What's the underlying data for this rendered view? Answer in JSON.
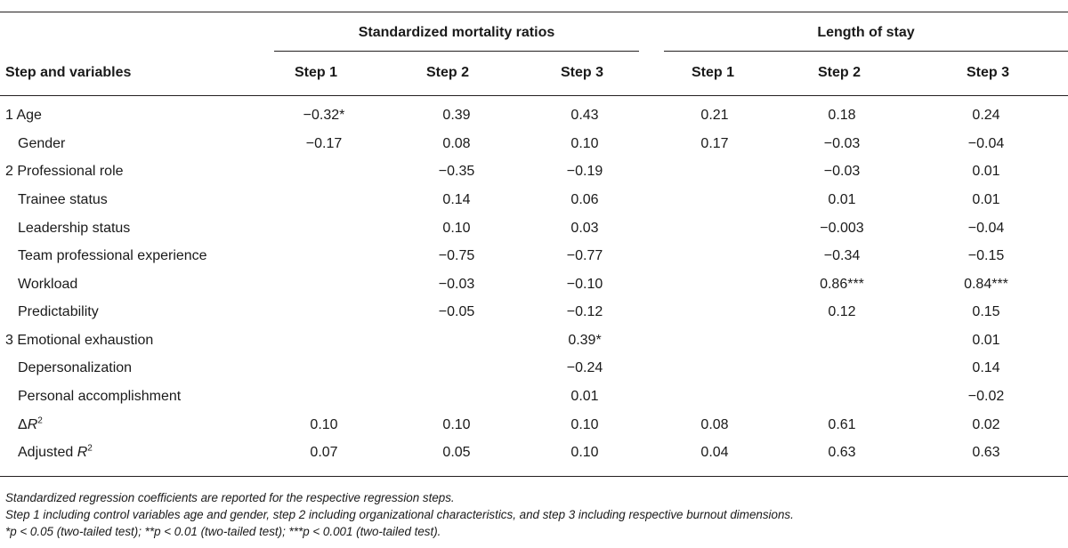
{
  "header": {
    "stub": "Step and variables",
    "groups": [
      {
        "title": "Standardized mortality ratios",
        "steps": [
          "Step 1",
          "Step 2",
          "Step 3"
        ]
      },
      {
        "title": "Length of stay",
        "steps": [
          "Step 1",
          "Step 2",
          "Step 3"
        ]
      }
    ]
  },
  "rows": [
    {
      "label": "1 Age",
      "smr": [
        "−0.32*",
        "0.39",
        "0.43"
      ],
      "los": [
        "0.21",
        "0.18",
        "0.24"
      ]
    },
    {
      "label": "Gender",
      "smr": [
        "−0.17",
        "0.08",
        "0.10"
      ],
      "los": [
        "0.17",
        "−0.03",
        "−0.04"
      ]
    },
    {
      "label": "2 Professional role",
      "smr": [
        "",
        "−0.35",
        "−0.19"
      ],
      "los": [
        "",
        "−0.03",
        "0.01"
      ]
    },
    {
      "label": "Trainee status",
      "smr": [
        "",
        "0.14",
        "0.06"
      ],
      "los": [
        "",
        "0.01",
        "0.01"
      ]
    },
    {
      "label": "Leadership status",
      "smr": [
        "",
        "0.10",
        "0.03"
      ],
      "los": [
        "",
        "−0.003",
        "−0.04"
      ]
    },
    {
      "label": "Team professional experience",
      "smr": [
        "",
        "−0.75",
        "−0.77"
      ],
      "los": [
        "",
        "−0.34",
        "−0.15"
      ]
    },
    {
      "label": "Workload",
      "smr": [
        "",
        "−0.03",
        "−0.10"
      ],
      "los": [
        "",
        "0.86***",
        "0.84***"
      ]
    },
    {
      "label": "Predictability",
      "smr": [
        "",
        "−0.05",
        "−0.12"
      ],
      "los": [
        "",
        "0.12",
        "0.15"
      ]
    },
    {
      "label": "3 Emotional exhaustion",
      "smr": [
        "",
        "",
        "0.39*"
      ],
      "los": [
        "",
        "",
        "0.01"
      ]
    },
    {
      "label": "Depersonalization",
      "smr": [
        "",
        "",
        "−0.24"
      ],
      "los": [
        "",
        "",
        "0.14"
      ]
    },
    {
      "label": "Personal accomplishment",
      "smr": [
        "",
        "",
        "0.01"
      ],
      "los": [
        "",
        "",
        "−0.02"
      ]
    },
    {
      "label_prefix": "Δ",
      "label_var": "R",
      "label_sup": "2",
      "smr": [
        "0.10",
        "0.10",
        "0.10"
      ],
      "los": [
        "0.08",
        "0.61",
        "0.02"
      ]
    },
    {
      "label_prefix": "Adjusted ",
      "label_var": "R",
      "label_sup": "2",
      "smr": [
        "0.07",
        "0.05",
        "0.10"
      ],
      "los": [
        "0.04",
        "0.63",
        "0.63"
      ]
    }
  ],
  "notes": [
    "Standardized regression coefficients are reported for the respective regression steps.",
    "Step 1 including control variables age and gender, step 2 including organizational characteristics, and step 3 including respective burnout dimensions.",
    "*p < 0.05 (two-tailed test); **p < 0.01 (two-tailed test); ***p < 0.001 (two-tailed test)."
  ]
}
